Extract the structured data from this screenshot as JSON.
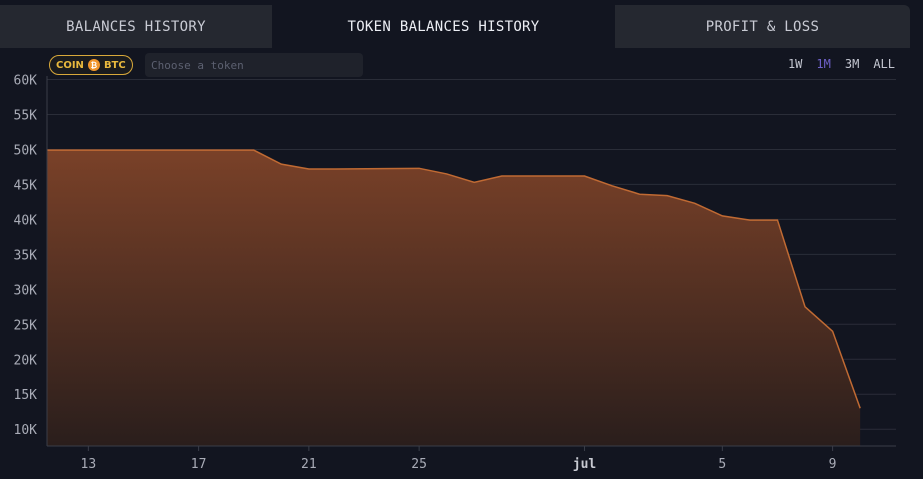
{
  "tabs": [
    {
      "label": "BALANCES HISTORY",
      "active": false
    },
    {
      "label": "TOKEN BALANCES HISTORY",
      "active": true
    },
    {
      "label": "PROFIT & LOSS",
      "active": false
    }
  ],
  "filter": {
    "prefix": "COIN",
    "icon": "bitcoin-icon",
    "token": "BTC",
    "placeholder": "Choose a token"
  },
  "ranges": [
    {
      "label": "1W",
      "active": false
    },
    {
      "label": "1M",
      "active": true
    },
    {
      "label": "3M",
      "active": false
    },
    {
      "label": "ALL",
      "active": false
    }
  ],
  "colors": {
    "line": "#c06a33",
    "fill_top": "#7a4128",
    "fill_bottom": "#2a1e1c",
    "active_range": "#6e61c9",
    "chip": "#e9b93e"
  },
  "chart_data": {
    "type": "area",
    "title": "",
    "xlabel": "",
    "ylabel": "",
    "x_ticks": [
      {
        "label": "13",
        "day": 13,
        "bold": false
      },
      {
        "label": "17",
        "day": 17,
        "bold": false
      },
      {
        "label": "21",
        "day": 21,
        "bold": false
      },
      {
        "label": "25",
        "day": 25,
        "bold": false
      },
      {
        "label": "jul",
        "day": 31,
        "bold": true
      },
      {
        "label": "5",
        "day": 36,
        "bold": false
      },
      {
        "label": "9",
        "day": 40,
        "bold": false
      }
    ],
    "y_ticks": [
      {
        "label": "10K",
        "value": 10000
      },
      {
        "label": "15K",
        "value": 15000
      },
      {
        "label": "20K",
        "value": 20000
      },
      {
        "label": "25K",
        "value": 25000
      },
      {
        "label": "30K",
        "value": 30000
      },
      {
        "label": "35K",
        "value": 35000
      },
      {
        "label": "40K",
        "value": 40000
      },
      {
        "label": "45K",
        "value": 45000
      },
      {
        "label": "50K",
        "value": 50000
      },
      {
        "label": "55K",
        "value": 55000
      },
      {
        "label": "60K",
        "value": 60000
      }
    ],
    "xlim": [
      11.5,
      42.3
    ],
    "ylim": [
      7600,
      60500
    ],
    "grid": true,
    "series": [
      {
        "points": [
          {
            "x": 11.5,
            "y": 49900
          },
          {
            "x": 19,
            "y": 49900
          },
          {
            "x": 20,
            "y": 47900
          },
          {
            "x": 21,
            "y": 47200
          },
          {
            "x": 22,
            "y": 47200
          },
          {
            "x": 25,
            "y": 47300
          },
          {
            "x": 26,
            "y": 46500
          },
          {
            "x": 27,
            "y": 45300
          },
          {
            "x": 28,
            "y": 46200
          },
          {
            "x": 30,
            "y": 46200
          },
          {
            "x": 31,
            "y": 46200
          },
          {
            "x": 32,
            "y": 44800
          },
          {
            "x": 33,
            "y": 43600
          },
          {
            "x": 34,
            "y": 43400
          },
          {
            "x": 35,
            "y": 42300
          },
          {
            "x": 36,
            "y": 40500
          },
          {
            "x": 37,
            "y": 39900
          },
          {
            "x": 38,
            "y": 39900
          },
          {
            "x": 39,
            "y": 27500
          },
          {
            "x": 40,
            "y": 24000
          },
          {
            "x": 41,
            "y": 13000
          }
        ]
      }
    ]
  }
}
